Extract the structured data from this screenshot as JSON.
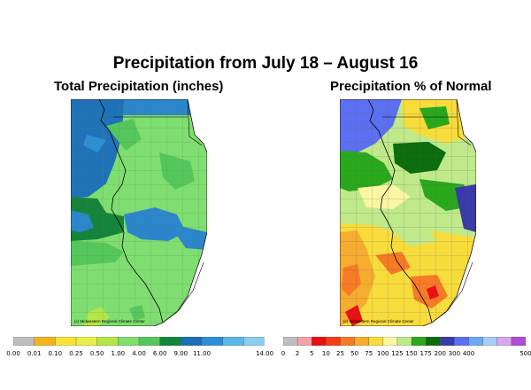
{
  "title": "Precipitation from July 18 – August 16",
  "left_panel": {
    "subtitle": "Total Precipitation (inches)",
    "credit": "(c) Midwestern Regional Climate Center",
    "legend": {
      "colors": [
        "#bfbfbf",
        "#f5b21e",
        "#f7e337",
        "#e8ef4a",
        "#b3e646",
        "#7ede6e",
        "#55c75a",
        "#13853a",
        "#1a6fb5",
        "#2b8fd8",
        "#5cb6e6",
        "#8ccdef"
      ],
      "labels": [
        "0.00",
        "0.01",
        "0.10",
        "0.25",
        "0.50",
        "1.00",
        "4.00",
        "6.00",
        "9.00",
        "11.00",
        "14.00"
      ]
    }
  },
  "right_panel": {
    "subtitle": "Precipitation % of Normal",
    "credit": "(c) Midwestern Regional Climate Center",
    "legend": {
      "colors": [
        "#bfbfbf",
        "#f4a3a8",
        "#e81010",
        "#f53b1a",
        "#f77a25",
        "#f6ac2f",
        "#f8dc3c",
        "#fbf6a3",
        "#bfe98a",
        "#2aa81c",
        "#0b6d0b",
        "#3a3aa8",
        "#5b6ff0",
        "#6ba9f3",
        "#a7cdf5",
        "#d9a6f0",
        "#b04cd6"
      ],
      "labels": [
        "0",
        "2",
        "5",
        "10",
        "25",
        "50",
        "75",
        "100",
        "125",
        "150",
        "175",
        "200",
        "300",
        "400",
        "500"
      ]
    }
  }
}
